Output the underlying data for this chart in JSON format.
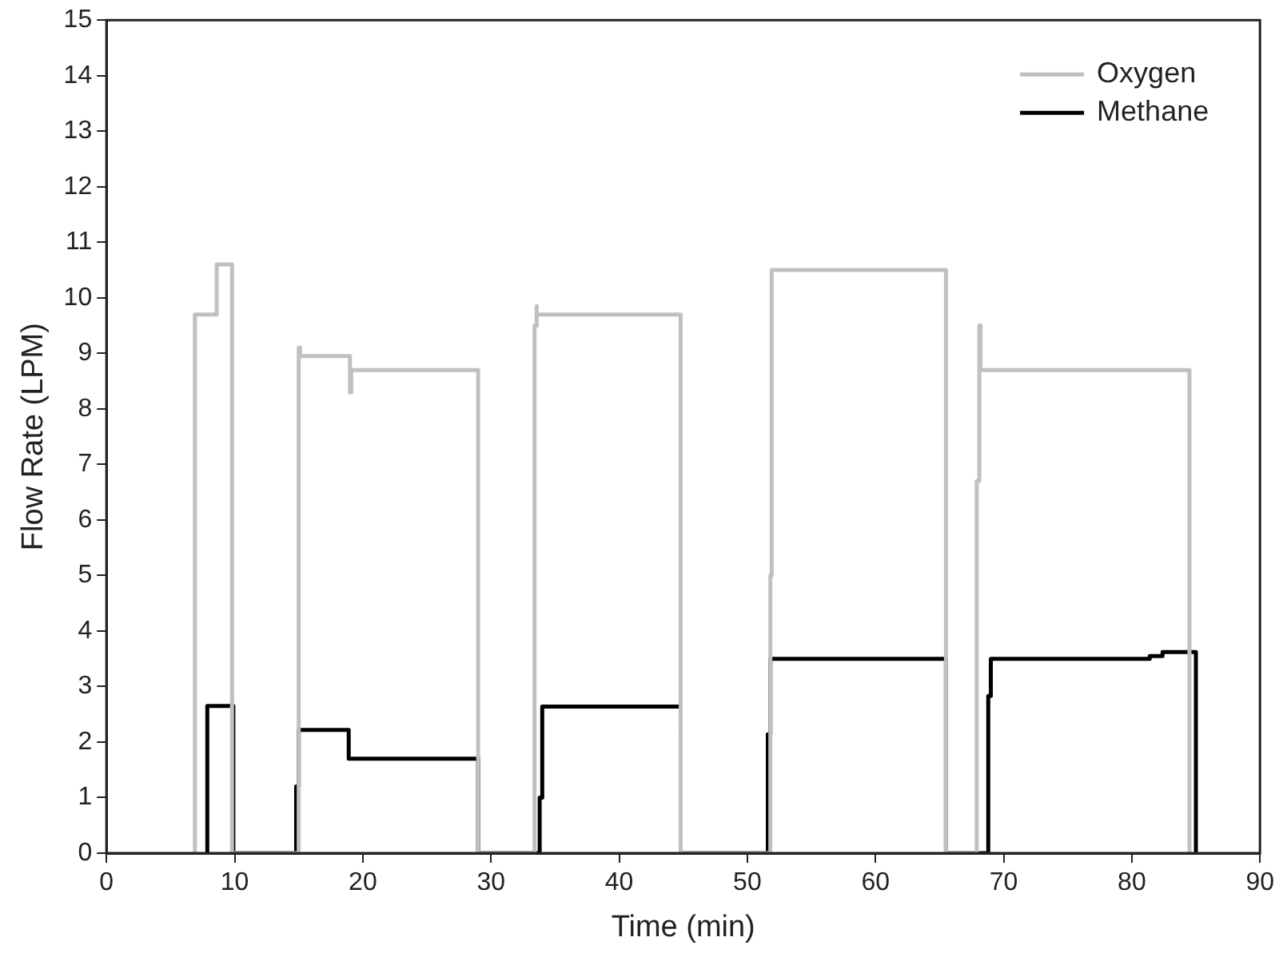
{
  "chart_data": {
    "type": "line",
    "xlabel": "Time (min)",
    "ylabel": "Flow Rate (LPM)",
    "xlim": [
      0,
      90
    ],
    "xticks": [
      0,
      10,
      20,
      30,
      40,
      50,
      60,
      70,
      80,
      90
    ],
    "ylim": [
      0,
      15
    ],
    "yticks": [
      0,
      1,
      2,
      3,
      4,
      5,
      6,
      7,
      8,
      9,
      10,
      11,
      12,
      13,
      14,
      15
    ],
    "grid": false,
    "legend": "top right",
    "marker": "none",
    "line_style": "solid",
    "series": [
      {
        "name": "Oxygen",
        "color": "#c0c0c0",
        "x": [
          6.9,
          6.9,
          8.6,
          8.6,
          9.8,
          9.8,
          15.0,
          15.0,
          15.1,
          15.1,
          19.0,
          19.0,
          19.1,
          19.1,
          29.0,
          29.0,
          33.4,
          33.4,
          33.5,
          33.5,
          33.6,
          33.6,
          44.8,
          44.8,
          51.8,
          51.8,
          51.9,
          51.9,
          65.5,
          65.5,
          67.9,
          67.9,
          68.1,
          68.1,
          68.2,
          68.2,
          84.5,
          84.5
        ],
        "values": [
          0,
          9.7,
          9.7,
          10.6,
          10.6,
          0,
          0,
          9.1,
          9.1,
          8.95,
          8.95,
          8.3,
          8.3,
          8.7,
          8.7,
          0,
          0,
          9.5,
          9.5,
          9.85,
          9.85,
          9.7,
          9.7,
          0,
          0,
          5.0,
          5.0,
          10.5,
          10.5,
          0,
          0,
          6.7,
          6.7,
          9.5,
          9.5,
          8.7,
          8.7,
          0
        ]
      },
      {
        "name": "Methane",
        "color": "#000000",
        "x": [
          7.8,
          7.8,
          7.9,
          7.9,
          9.9,
          9.9,
          14.8,
          14.8,
          15.0,
          15.0,
          18.9,
          18.9,
          29.0,
          29.0,
          33.8,
          33.8,
          34.0,
          34.0,
          44.8,
          44.8,
          51.6,
          51.6,
          51.8,
          51.8,
          65.5,
          65.5,
          68.8,
          68.8,
          69.0,
          69.0,
          81.4,
          81.4,
          82.4,
          82.4,
          85.0,
          85.0
        ],
        "values": [
          0,
          2.6,
          2.6,
          2.65,
          2.65,
          0,
          0,
          1.2,
          1.2,
          2.22,
          2.22,
          1.7,
          1.7,
          0,
          0,
          1.0,
          1.0,
          2.64,
          2.64,
          0,
          0,
          2.14,
          2.14,
          3.5,
          3.5,
          0,
          0,
          2.83,
          2.83,
          3.5,
          3.5,
          3.55,
          3.55,
          3.62,
          3.62,
          0
        ]
      }
    ]
  }
}
